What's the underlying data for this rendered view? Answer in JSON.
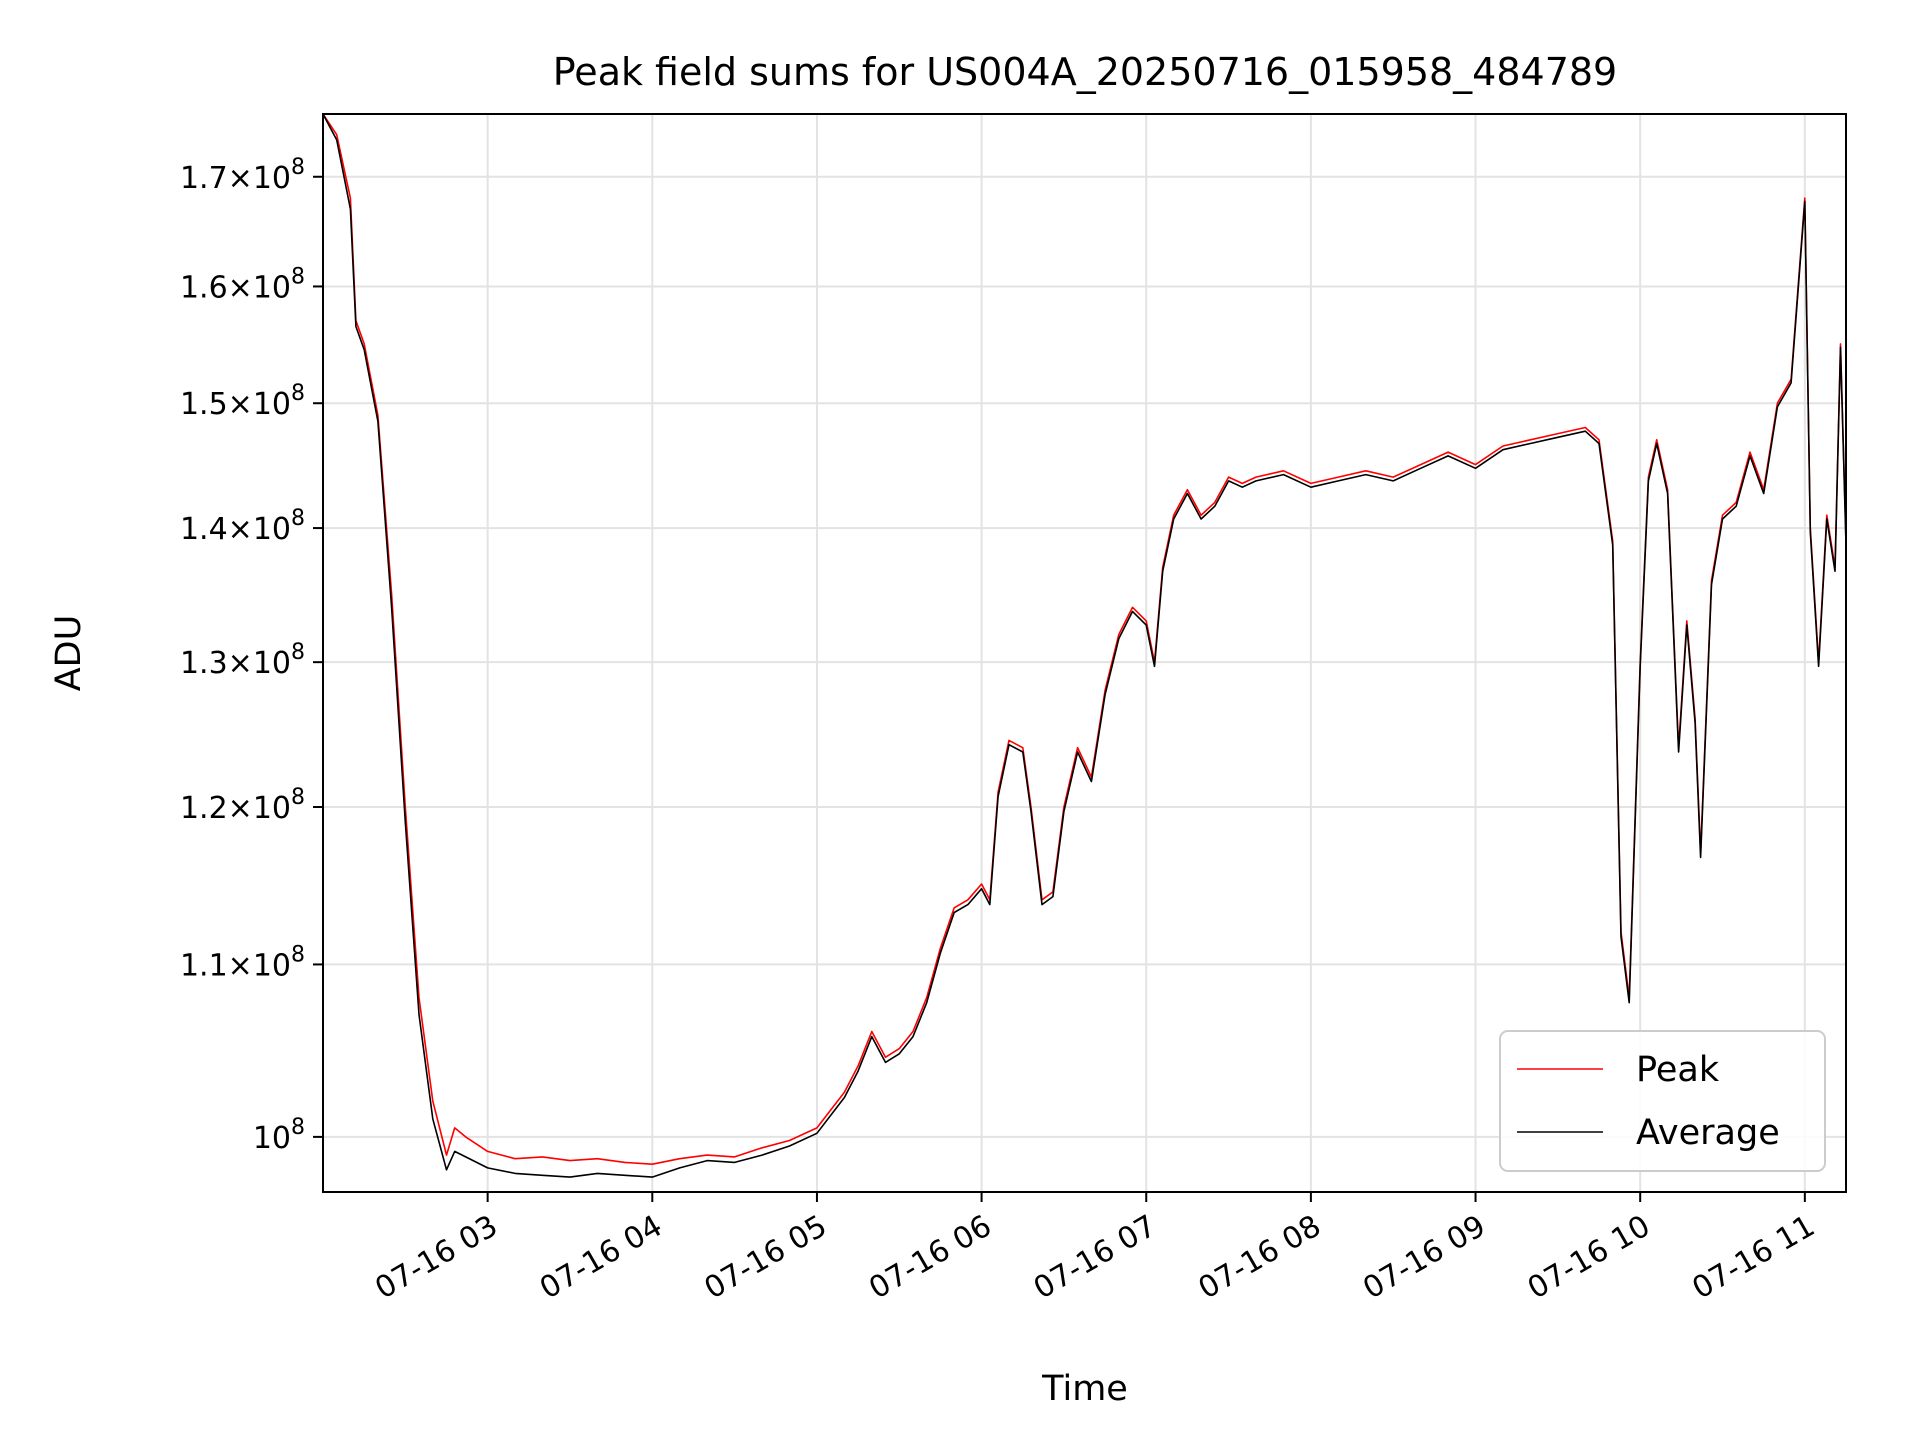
{
  "chart_data": {
    "type": "line",
    "title": "Peak field sums for US004A_20250716_015958_484789",
    "xlabel": "Time",
    "ylabel": "ADU",
    "y_scale": "log",
    "grid": true,
    "legend_position": "lower-right",
    "xlim": [
      "07-16 02:00",
      "07-16 11:15"
    ],
    "ylim": [
      97000000,
      176000000
    ],
    "x_ticks": [
      {
        "value": "07-16 03:00",
        "label": "07-16 03"
      },
      {
        "value": "07-16 04:00",
        "label": "07-16 04"
      },
      {
        "value": "07-16 05:00",
        "label": "07-16 05"
      },
      {
        "value": "07-16 06:00",
        "label": "07-16 06"
      },
      {
        "value": "07-16 07:00",
        "label": "07-16 07"
      },
      {
        "value": "07-16 08:00",
        "label": "07-16 08"
      },
      {
        "value": "07-16 09:00",
        "label": "07-16 09"
      },
      {
        "value": "07-16 10:00",
        "label": "07-16 10"
      },
      {
        "value": "07-16 11:00",
        "label": "07-16 11"
      }
    ],
    "y_ticks": [
      {
        "value": 100000000,
        "mantissa": "",
        "exponent": "8"
      },
      {
        "value": 110000000,
        "mantissa": "1.1",
        "exponent": "8"
      },
      {
        "value": 120000000,
        "mantissa": "1.2",
        "exponent": "8"
      },
      {
        "value": 130000000,
        "mantissa": "1.3",
        "exponent": "8"
      },
      {
        "value": 140000000,
        "mantissa": "1.4",
        "exponent": "8"
      },
      {
        "value": 150000000,
        "mantissa": "1.5",
        "exponent": "8"
      },
      {
        "value": 160000000,
        "mantissa": "1.6",
        "exponent": "8"
      },
      {
        "value": 170000000,
        "mantissa": "1.7",
        "exponent": "8"
      }
    ],
    "series": [
      {
        "name": "Peak",
        "color": "#ff0000",
        "points": [
          [
            "07-16 02:00",
            176000000
          ],
          [
            "07-16 02:05",
            174000000
          ],
          [
            "07-16 02:10",
            168000000
          ],
          [
            "07-16 02:12",
            157000000
          ],
          [
            "07-16 02:15",
            155000000
          ],
          [
            "07-16 02:20",
            149000000
          ],
          [
            "07-16 02:25",
            135000000
          ],
          [
            "07-16 02:30",
            120000000
          ],
          [
            "07-16 02:35",
            108000000
          ],
          [
            "07-16 02:40",
            102000000
          ],
          [
            "07-16 02:45",
            99000000
          ],
          [
            "07-16 02:48",
            100500000
          ],
          [
            "07-16 02:52",
            100000000
          ],
          [
            "07-16 03:00",
            99200000
          ],
          [
            "07-16 03:10",
            98800000
          ],
          [
            "07-16 03:20",
            98900000
          ],
          [
            "07-16 03:30",
            98700000
          ],
          [
            "07-16 03:40",
            98800000
          ],
          [
            "07-16 03:50",
            98600000
          ],
          [
            "07-16 04:00",
            98500000
          ],
          [
            "07-16 04:10",
            98800000
          ],
          [
            "07-16 04:20",
            99000000
          ],
          [
            "07-16 04:30",
            98900000
          ],
          [
            "07-16 04:40",
            99400000
          ],
          [
            "07-16 04:50",
            99800000
          ],
          [
            "07-16 05:00",
            100500000
          ],
          [
            "07-16 05:10",
            102500000
          ],
          [
            "07-16 05:15",
            104000000
          ],
          [
            "07-16 05:20",
            106000000
          ],
          [
            "07-16 05:25",
            104500000
          ],
          [
            "07-16 05:30",
            105000000
          ],
          [
            "07-16 05:35",
            106000000
          ],
          [
            "07-16 05:40",
            108000000
          ],
          [
            "07-16 05:45",
            111000000
          ],
          [
            "07-16 05:50",
            113500000
          ],
          [
            "07-16 05:55",
            114000000
          ],
          [
            "07-16 06:00",
            115000000
          ],
          [
            "07-16 06:03",
            114000000
          ],
          [
            "07-16 06:06",
            121000000
          ],
          [
            "07-16 06:10",
            124500000
          ],
          [
            "07-16 06:15",
            124000000
          ],
          [
            "07-16 06:18",
            120000000
          ],
          [
            "07-16 06:22",
            114000000
          ],
          [
            "07-16 06:26",
            114500000
          ],
          [
            "07-16 06:30",
            120000000
          ],
          [
            "07-16 06:35",
            124000000
          ],
          [
            "07-16 06:40",
            122000000
          ],
          [
            "07-16 06:45",
            128000000
          ],
          [
            "07-16 06:50",
            132000000
          ],
          [
            "07-16 06:55",
            134000000
          ],
          [
            "07-16 07:00",
            133000000
          ],
          [
            "07-16 07:03",
            130000000
          ],
          [
            "07-16 07:06",
            137000000
          ],
          [
            "07-16 07:10",
            141000000
          ],
          [
            "07-16 07:15",
            143000000
          ],
          [
            "07-16 07:20",
            141000000
          ],
          [
            "07-16 07:25",
            142000000
          ],
          [
            "07-16 07:30",
            144000000
          ],
          [
            "07-16 07:35",
            143500000
          ],
          [
            "07-16 07:40",
            144000000
          ],
          [
            "07-16 07:50",
            144500000
          ],
          [
            "07-16 08:00",
            143500000
          ],
          [
            "07-16 08:10",
            144000000
          ],
          [
            "07-16 08:20",
            144500000
          ],
          [
            "07-16 08:30",
            144000000
          ],
          [
            "07-16 08:40",
            145000000
          ],
          [
            "07-16 08:50",
            146000000
          ],
          [
            "07-16 09:00",
            145000000
          ],
          [
            "07-16 09:10",
            146500000
          ],
          [
            "07-16 09:20",
            147000000
          ],
          [
            "07-16 09:30",
            147500000
          ],
          [
            "07-16 09:40",
            148000000
          ],
          [
            "07-16 09:45",
            147000000
          ],
          [
            "07-16 09:50",
            139000000
          ],
          [
            "07-16 09:53",
            112000000
          ],
          [
            "07-16 09:56",
            108000000
          ],
          [
            "07-16 10:00",
            130000000
          ],
          [
            "07-16 10:03",
            144000000
          ],
          [
            "07-16 10:06",
            147000000
          ],
          [
            "07-16 10:10",
            143000000
          ],
          [
            "07-16 10:14",
            124000000
          ],
          [
            "07-16 10:17",
            133000000
          ],
          [
            "07-16 10:20",
            126000000
          ],
          [
            "07-16 10:22",
            117000000
          ],
          [
            "07-16 10:26",
            136000000
          ],
          [
            "07-16 10:30",
            141000000
          ],
          [
            "07-16 10:35",
            142000000
          ],
          [
            "07-16 10:40",
            146000000
          ],
          [
            "07-16 10:45",
            143000000
          ],
          [
            "07-16 10:50",
            150000000
          ],
          [
            "07-16 10:55",
            152000000
          ],
          [
            "07-16 11:00",
            168000000
          ],
          [
            "07-16 11:02",
            140000000
          ],
          [
            "07-16 11:05",
            130000000
          ],
          [
            "07-16 11:08",
            141000000
          ],
          [
            "07-16 11:11",
            137000000
          ],
          [
            "07-16 11:13",
            155000000
          ],
          [
            "07-16 11:15",
            139000000
          ]
        ]
      },
      {
        "name": "Average",
        "color": "#000000",
        "points": [
          [
            "07-16 02:00",
            176000000
          ],
          [
            "07-16 02:05",
            173500000
          ],
          [
            "07-16 02:10",
            167000000
          ],
          [
            "07-16 02:12",
            156500000
          ],
          [
            "07-16 02:15",
            154500000
          ],
          [
            "07-16 02:20",
            148500000
          ],
          [
            "07-16 02:25",
            134000000
          ],
          [
            "07-16 02:30",
            119000000
          ],
          [
            "07-16 02:35",
            107000000
          ],
          [
            "07-16 02:40",
            101000000
          ],
          [
            "07-16 02:45",
            98200000
          ],
          [
            "07-16 02:48",
            99200000
          ],
          [
            "07-16 02:52",
            98900000
          ],
          [
            "07-16 03:00",
            98300000
          ],
          [
            "07-16 03:10",
            98000000
          ],
          [
            "07-16 03:20",
            97900000
          ],
          [
            "07-16 03:30",
            97800000
          ],
          [
            "07-16 03:40",
            98000000
          ],
          [
            "07-16 03:50",
            97900000
          ],
          [
            "07-16 04:00",
            97800000
          ],
          [
            "07-16 04:10",
            98300000
          ],
          [
            "07-16 04:20",
            98700000
          ],
          [
            "07-16 04:30",
            98600000
          ],
          [
            "07-16 04:40",
            99000000
          ],
          [
            "07-16 04:50",
            99500000
          ],
          [
            "07-16 05:00",
            100200000
          ],
          [
            "07-16 05:10",
            102200000
          ],
          [
            "07-16 05:15",
            103700000
          ],
          [
            "07-16 05:20",
            105700000
          ],
          [
            "07-16 05:25",
            104200000
          ],
          [
            "07-16 05:30",
            104700000
          ],
          [
            "07-16 05:35",
            105700000
          ],
          [
            "07-16 05:40",
            107700000
          ],
          [
            "07-16 05:45",
            110700000
          ],
          [
            "07-16 05:50",
            113200000
          ],
          [
            "07-16 05:55",
            113700000
          ],
          [
            "07-16 06:00",
            114700000
          ],
          [
            "07-16 06:03",
            113700000
          ],
          [
            "07-16 06:06",
            120700000
          ],
          [
            "07-16 06:10",
            124200000
          ],
          [
            "07-16 06:15",
            123700000
          ],
          [
            "07-16 06:18",
            119700000
          ],
          [
            "07-16 06:22",
            113700000
          ],
          [
            "07-16 06:26",
            114200000
          ],
          [
            "07-16 06:30",
            119700000
          ],
          [
            "07-16 06:35",
            123700000
          ],
          [
            "07-16 06:40",
            121700000
          ],
          [
            "07-16 06:45",
            127700000
          ],
          [
            "07-16 06:50",
            131700000
          ],
          [
            "07-16 06:55",
            133700000
          ],
          [
            "07-16 07:00",
            132700000
          ],
          [
            "07-16 07:03",
            129700000
          ],
          [
            "07-16 07:06",
            136700000
          ],
          [
            "07-16 07:10",
            140700000
          ],
          [
            "07-16 07:15",
            142700000
          ],
          [
            "07-16 07:20",
            140700000
          ],
          [
            "07-16 07:25",
            141700000
          ],
          [
            "07-16 07:30",
            143700000
          ],
          [
            "07-16 07:35",
            143200000
          ],
          [
            "07-16 07:40",
            143700000
          ],
          [
            "07-16 07:50",
            144200000
          ],
          [
            "07-16 08:00",
            143200000
          ],
          [
            "07-16 08:10",
            143700000
          ],
          [
            "07-16 08:20",
            144200000
          ],
          [
            "07-16 08:30",
            143700000
          ],
          [
            "07-16 08:40",
            144700000
          ],
          [
            "07-16 08:50",
            145700000
          ],
          [
            "07-16 09:00",
            144700000
          ],
          [
            "07-16 09:10",
            146200000
          ],
          [
            "07-16 09:20",
            146700000
          ],
          [
            "07-16 09:30",
            147200000
          ],
          [
            "07-16 09:40",
            147700000
          ],
          [
            "07-16 09:45",
            146700000
          ],
          [
            "07-16 09:50",
            138700000
          ],
          [
            "07-16 09:53",
            111700000
          ],
          [
            "07-16 09:56",
            107700000
          ],
          [
            "07-16 10:00",
            129700000
          ],
          [
            "07-16 10:03",
            143700000
          ],
          [
            "07-16 10:06",
            146700000
          ],
          [
            "07-16 10:10",
            142700000
          ],
          [
            "07-16 10:14",
            123700000
          ],
          [
            "07-16 10:17",
            132700000
          ],
          [
            "07-16 10:20",
            125700000
          ],
          [
            "07-16 10:22",
            116700000
          ],
          [
            "07-16 10:26",
            135700000
          ],
          [
            "07-16 10:30",
            140700000
          ],
          [
            "07-16 10:35",
            141700000
          ],
          [
            "07-16 10:40",
            145700000
          ],
          [
            "07-16 10:45",
            142700000
          ],
          [
            "07-16 10:50",
            149700000
          ],
          [
            "07-16 10:55",
            151700000
          ],
          [
            "07-16 11:00",
            167700000
          ],
          [
            "07-16 11:02",
            139700000
          ],
          [
            "07-16 11:05",
            129700000
          ],
          [
            "07-16 11:08",
            140700000
          ],
          [
            "07-16 11:11",
            136700000
          ],
          [
            "07-16 11:13",
            154700000
          ],
          [
            "07-16 11:15",
            138700000
          ]
        ]
      }
    ]
  }
}
